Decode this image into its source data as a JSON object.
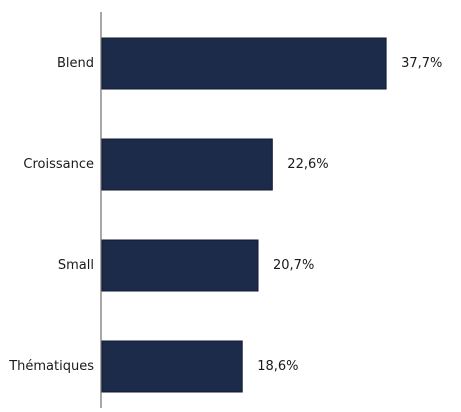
{
  "chart_data": {
    "type": "bar",
    "orientation": "horizontal",
    "categories": [
      "Blend",
      "Croissance",
      "Small",
      "Thématiques"
    ],
    "values": [
      37.7,
      22.6,
      20.7,
      18.6
    ],
    "value_labels": [
      "37,7%",
      "22,6%",
      "20,7%",
      "18,6%"
    ],
    "title": "",
    "xlabel": "",
    "ylabel": "",
    "xlim": [
      0,
      40
    ],
    "grid": false,
    "legend": "none",
    "bar_color": "#1d2b4a",
    "axis_color": "#8c8c8c"
  }
}
